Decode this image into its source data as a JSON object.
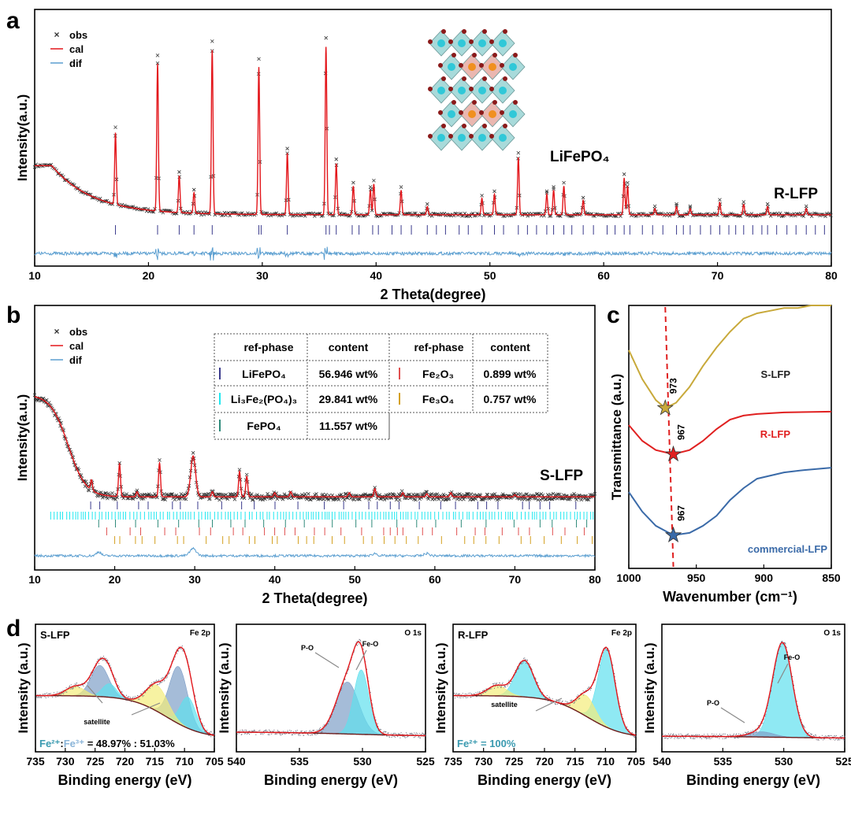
{
  "colors": {
    "obs": "#333333",
    "cal": "#e3161b",
    "dif": "#5a9ed0",
    "lifepo4": "#3a3a8c",
    "li3fe2po43": "#20e8f0",
    "fepo4": "#2e8a7a",
    "fe2o3": "#e05050",
    "fe3o4": "#d4a020",
    "s_lfp": "#c8a93a",
    "r_lfp": "#e02020",
    "commercial": "#3a6aa8",
    "xps_blue": "#7f9fc8",
    "xps_cyan": "#5fe0ee",
    "xps_yellow": "#f3ec7a"
  },
  "chart_data": [
    {
      "panel": "a",
      "type": "line",
      "title": "",
      "label": "R-LFP",
      "inset_label": "LiFePO₄",
      "xlabel": "2 Theta(degree)",
      "ylabel": "Intensity(a.u.)",
      "xlim": [
        10,
        80
      ],
      "xticks": [
        "10",
        "20",
        "30",
        "40",
        "50",
        "60",
        "70",
        "80"
      ],
      "legend": [
        "obs",
        "cal",
        "dif"
      ],
      "legend_position": "top-left",
      "peaks": [
        [
          17.1,
          35
        ],
        [
          20.8,
          72
        ],
        [
          22.7,
          18
        ],
        [
          24.0,
          10
        ],
        [
          25.6,
          80
        ],
        [
          29.7,
          72
        ],
        [
          32.2,
          30
        ],
        [
          35.6,
          82
        ],
        [
          36.5,
          25
        ],
        [
          38.0,
          14
        ],
        [
          39.5,
          12
        ],
        [
          39.8,
          15
        ],
        [
          42.2,
          12
        ],
        [
          44.5,
          4
        ],
        [
          49.3,
          8
        ],
        [
          50.4,
          10
        ],
        [
          52.5,
          28
        ],
        [
          55.0,
          10
        ],
        [
          55.6,
          12
        ],
        [
          56.5,
          14
        ],
        [
          58.2,
          7
        ],
        [
          61.8,
          18
        ],
        [
          62.1,
          14
        ],
        [
          64.5,
          3
        ],
        [
          66.4,
          4
        ],
        [
          67.6,
          3
        ],
        [
          70.2,
          6
        ],
        [
          72.3,
          5
        ],
        [
          74.4,
          4
        ],
        [
          77.8,
          3
        ]
      ],
      "reflections": [
        17.1,
        20.8,
        22.7,
        24.0,
        25.6,
        29.7,
        29.9,
        32.2,
        35.6,
        35.9,
        36.5,
        37.9,
        38.5,
        39.7,
        40.2,
        41.4,
        42.2,
        43.1,
        44.5,
        45.3,
        46.1,
        47.3,
        48.1,
        49.3,
        50.4,
        51.2,
        52.5,
        53.3,
        54.1,
        55.0,
        55.6,
        56.5,
        57.2,
        58.2,
        59.1,
        60.3,
        61.0,
        61.8,
        62.3,
        63.4,
        64.3,
        65.2,
        66.4,
        67.0,
        67.6,
        68.5,
        69.4,
        70.2,
        71.0,
        71.6,
        72.3,
        73.1,
        73.9,
        74.4,
        75.2,
        76.1,
        76.9,
        77.8,
        78.6,
        79.4
      ]
    },
    {
      "panel": "b",
      "type": "line",
      "label": "S-LFP",
      "xlabel": "2 Theta(degree)",
      "ylabel": "Intensity(a.u.)",
      "xlim": [
        10,
        80
      ],
      "xticks": [
        "10",
        "20",
        "30",
        "40",
        "50",
        "60",
        "70",
        "80"
      ],
      "legend": [
        "obs",
        "cal",
        "dif"
      ],
      "legend_position": "top-left",
      "peaks": [
        [
          17.1,
          10
        ],
        [
          20.6,
          32
        ],
        [
          22.8,
          5
        ],
        [
          25.6,
          33
        ],
        [
          29.8,
          40
        ],
        [
          32.2,
          5
        ],
        [
          35.6,
          25
        ],
        [
          36.5,
          20
        ],
        [
          40.0,
          4
        ],
        [
          42.0,
          5
        ],
        [
          49.3,
          4
        ],
        [
          52.5,
          8
        ],
        [
          56.0,
          4
        ],
        [
          59.0,
          3
        ],
        [
          62.0,
          4
        ],
        [
          70,
          2
        ]
      ],
      "table": {
        "headers": [
          "ref-phase",
          "content",
          "ref-phase",
          "content"
        ],
        "rows": [
          {
            "phase": "LiFePO₄",
            "content": "56.946 wt%",
            "phase2": "Fe₂O₃",
            "content2": "0.899 wt%"
          },
          {
            "phase": "Li₃Fe₂(PO₄)₃",
            "content": "29.841 wt%",
            "phase2": "Fe₃O₄",
            "content2": "0.757 wt%"
          },
          {
            "phase": "FePO₄",
            "content": "11.557 wt%",
            "phase2": "",
            "content2": ""
          }
        ]
      }
    },
    {
      "panel": "c",
      "type": "line",
      "xlabel": "Wavenumber (cm⁻¹)",
      "ylabel": "Transmittance (a.u.)",
      "xlim": [
        1000,
        850
      ],
      "xticks": [
        "1000",
        "950",
        "900",
        "850"
      ],
      "series": [
        {
          "name": "S-LFP",
          "min_label": "973",
          "min_x": 973,
          "x": [
            1000,
            990,
            980,
            973,
            965,
            955,
            945,
            935,
            925,
            915,
            905,
            895,
            885,
            875,
            865,
            850
          ],
          "y": [
            0.83,
            0.72,
            0.64,
            0.61,
            0.63,
            0.69,
            0.77,
            0.84,
            0.9,
            0.95,
            0.97,
            0.98,
            0.99,
            0.99,
            1.0,
            1.0
          ]
        },
        {
          "name": "R-LFP",
          "min_label": "967",
          "min_x": 967,
          "x": [
            1000,
            990,
            980,
            967,
            955,
            945,
            935,
            925,
            915,
            905,
            885,
            850
          ],
          "y": [
            0.545,
            0.485,
            0.45,
            0.434,
            0.45,
            0.485,
            0.53,
            0.566,
            0.581,
            0.587,
            0.593,
            0.596
          ]
        },
        {
          "name": "commercial-LFP",
          "min_label": "967",
          "min_x": 967,
          "x": [
            1000,
            990,
            980,
            967,
            955,
            945,
            935,
            925,
            915,
            905,
            885,
            870,
            850
          ],
          "y": [
            0.29,
            0.216,
            0.162,
            0.126,
            0.135,
            0.162,
            0.2,
            0.26,
            0.305,
            0.341,
            0.365,
            0.374,
            0.383
          ]
        }
      ]
    },
    {
      "panel": "d1",
      "type": "area",
      "sample": "S-LFP",
      "region": "Fe 2p",
      "xlabel": "Binding energy (eV)",
      "ylabel": "Intensity (a.u.)",
      "xlim": [
        735,
        705
      ],
      "xticks": [
        "735",
        "730",
        "725",
        "720",
        "715",
        "710",
        "705"
      ],
      "annotation": "satellite",
      "ratio_label_a": "Fe²⁺",
      "ratio_sep": ":",
      "ratio_label_b": "Fe³⁺",
      "ratio_value": " =  48.97% : 51.03%",
      "background": {
        "high": 0.45,
        "low": 0.04,
        "step_center": 713
      },
      "components": [
        {
          "c": 711,
          "h": 0.55,
          "w": 1.5,
          "color": "blue"
        },
        {
          "c": 709.4,
          "h": 0.3,
          "w": 1.3,
          "color": "cyan"
        },
        {
          "c": 714.6,
          "h": 0.25,
          "w": 1.8,
          "color": "yellow"
        },
        {
          "c": 724.2,
          "h": 0.3,
          "w": 1.5,
          "color": "blue"
        },
        {
          "c": 722.6,
          "h": 0.13,
          "w": 1.2,
          "color": "cyan"
        },
        {
          "c": 728.3,
          "h": 0.09,
          "w": 1.6,
          "color": "yellow"
        }
      ]
    },
    {
      "panel": "d2",
      "type": "area",
      "sample": "S-LFP",
      "region": "O 1s",
      "xlabel": "Binding energy (eV)",
      "ylabel": "Intensity (a.u.)",
      "xlim": [
        540,
        525
      ],
      "xticks": [
        "540",
        "535",
        "530",
        "525"
      ],
      "annotations": [
        "P-O",
        "Fe-O"
      ],
      "background": {
        "high": 0.1,
        "low": 0.06,
        "step_center": 531
      },
      "components": [
        {
          "c": 531.2,
          "h": 0.5,
          "w": 0.9,
          "color": "blue"
        },
        {
          "c": 530.1,
          "h": 0.62,
          "w": 0.6,
          "color": "cyan"
        }
      ]
    },
    {
      "panel": "d3",
      "type": "area",
      "sample": "R-LFP",
      "region": "Fe 2p",
      "xlabel": "Binding energy (eV)",
      "ylabel": "Intensity (a.u.)",
      "xlim": [
        735,
        705
      ],
      "xticks": [
        "735",
        "730",
        "725",
        "720",
        "715",
        "710",
        "705"
      ],
      "annotation": "satellite",
      "ratio_label_a": "Fe²⁺",
      "ratio_value": " = 100%",
      "background": {
        "high": 0.45,
        "low": 0.04,
        "step_center": 713
      },
      "components": [
        {
          "c": 709.8,
          "h": 0.75,
          "w": 1.4,
          "color": "cyan"
        },
        {
          "c": 713.2,
          "h": 0.2,
          "w": 1.5,
          "color": "yellow"
        },
        {
          "c": 723.3,
          "h": 0.35,
          "w": 1.5,
          "color": "cyan"
        },
        {
          "c": 727.8,
          "h": 0.1,
          "w": 1.6,
          "color": "yellow"
        }
      ]
    },
    {
      "panel": "d4",
      "type": "area",
      "sample": "R-LFP",
      "region": "O 1s",
      "xlabel": "Binding energy (eV)",
      "ylabel": "Intensity (a.u.)",
      "xlim": [
        540,
        525
      ],
      "xticks": [
        "540",
        "535",
        "530",
        "525"
      ],
      "annotations": [
        "P-O",
        "Fe-O"
      ],
      "background": {
        "high": 0.06,
        "low": 0.04,
        "step_center": 531
      },
      "components": [
        {
          "c": 530.1,
          "h": 0.9,
          "w": 0.8,
          "color": "cyan"
        },
        {
          "c": 531.8,
          "h": 0.05,
          "w": 1.0,
          "color": "blue"
        }
      ]
    }
  ],
  "panel_labels": [
    "a",
    "b",
    "c",
    "d"
  ]
}
